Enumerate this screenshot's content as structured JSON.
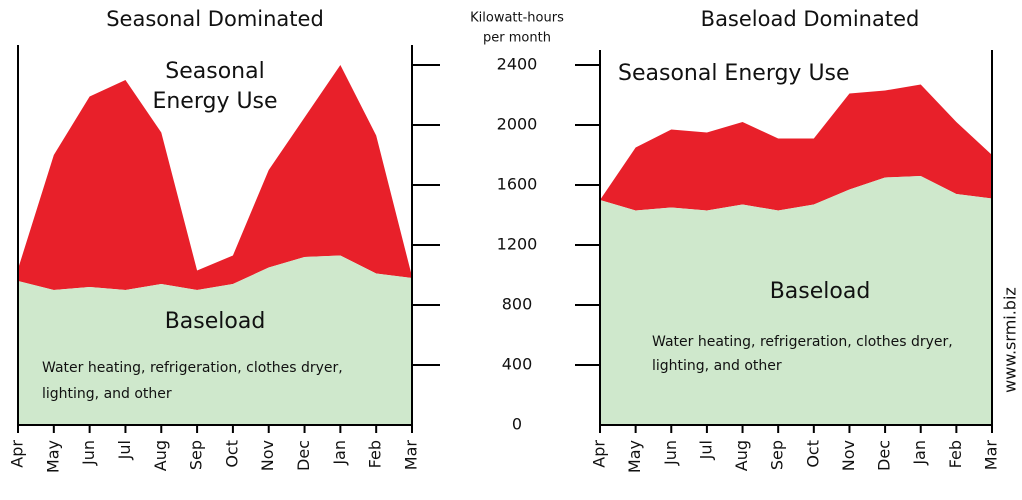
{
  "axis": {
    "label_lines": [
      "Kilowatt-hours",
      "per month"
    ]
  },
  "watermark": "www.srmi.biz",
  "chart_data": [
    {
      "type": "area",
      "title": "Seasonal Dominated",
      "categories": [
        "Apr",
        "May",
        "Jun",
        "Jul",
        "Aug",
        "Sep",
        "Oct",
        "Nov",
        "Dec",
        "Jan",
        "Feb",
        "Mar"
      ],
      "series": [
        {
          "name": "Baseload",
          "color": "#cfe8cc",
          "values": [
            960,
            900,
            920,
            900,
            940,
            900,
            940,
            1050,
            1120,
            1130,
            1010,
            980
          ]
        },
        {
          "name": "Seasonal Energy Use",
          "color": "#e8202a",
          "values": [
            80,
            900,
            1270,
            1400,
            1010,
            130,
            190,
            650,
            930,
            1270,
            920,
            10
          ]
        }
      ],
      "annotations": [
        "Seasonal",
        "Energy Use",
        "Baseload",
        "Water heating, refrigeration, clothes dryer,",
        "lighting, and other"
      ],
      "ylim": [
        0,
        2400
      ],
      "yticks": [
        0,
        400,
        800,
        1200,
        1600,
        2000,
        2400
      ]
    },
    {
      "type": "area",
      "title": "Baseload Dominated",
      "categories": [
        "Apr",
        "May",
        "Jun",
        "Jul",
        "Aug",
        "Sep",
        "Oct",
        "Nov",
        "Dec",
        "Jan",
        "Feb",
        "Mar"
      ],
      "series": [
        {
          "name": "Baseload",
          "color": "#cfe8cc",
          "values": [
            1500,
            1430,
            1450,
            1430,
            1470,
            1430,
            1470,
            1570,
            1650,
            1660,
            1540,
            1510
          ]
        },
        {
          "name": "Seasonal Energy Use",
          "color": "#e8202a",
          "values": [
            0,
            420,
            520,
            520,
            550,
            480,
            440,
            640,
            580,
            610,
            480,
            290
          ]
        }
      ],
      "annotations": [
        "Seasonal Energy Use",
        "Baseload",
        "Water heating, refrigeration, clothes dryer,",
        "lighting, and other"
      ],
      "ylim": [
        0,
        2400
      ]
    }
  ]
}
